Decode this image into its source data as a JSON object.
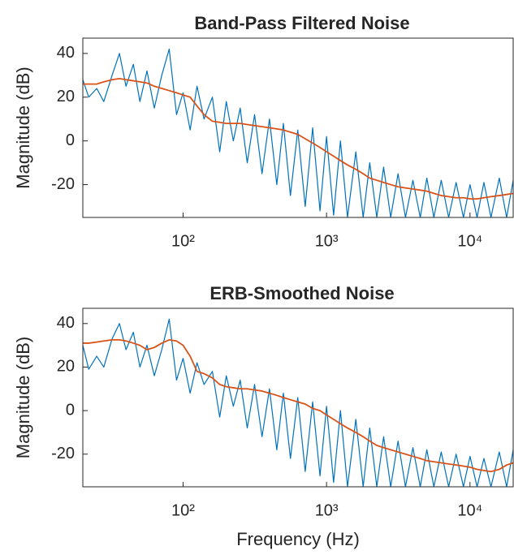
{
  "chart_data": [
    {
      "type": "line",
      "title": "Band-Pass Filtered Noise",
      "ylabel": "Magnitude (dB)",
      "log_x": true,
      "x": [
        20,
        22,
        25,
        28,
        32,
        36,
        40,
        45,
        50,
        56,
        63,
        71,
        80,
        90,
        100,
        112,
        125,
        140,
        160,
        180,
        200,
        224,
        250,
        280,
        315,
        355,
        400,
        450,
        500,
        560,
        630,
        710,
        800,
        900,
        1000,
        1120,
        1250,
        1400,
        1600,
        1800,
        2000,
        2240,
        2500,
        2800,
        3150,
        3550,
        4000,
        4500,
        5000,
        5600,
        6300,
        7100,
        8000,
        9000,
        10000,
        11200,
        12500,
        14000,
        16000,
        18000,
        20000
      ],
      "series": [
        {
          "color": "#0072bd",
          "values": [
            28,
            20,
            24,
            18,
            30,
            40,
            25,
            35,
            18,
            32,
            15,
            30,
            42,
            12,
            22,
            5,
            25,
            10,
            20,
            -5,
            18,
            0,
            15,
            -10,
            12,
            -15,
            10,
            -20,
            8,
            -25,
            5,
            -30,
            6,
            -32,
            2,
            -34,
            0,
            -35,
            -5,
            -35,
            -10,
            -35,
            -12,
            -35,
            -15,
            -35,
            -18,
            -35,
            -17,
            -35,
            -18,
            -35,
            -19,
            -35,
            -20,
            -35,
            -19,
            -35,
            -17,
            -35,
            -18
          ]
        },
        {
          "color": "#d95319",
          "values": [
            26,
            26,
            26,
            27,
            28,
            28.5,
            28,
            27.5,
            27,
            26.5,
            25,
            24,
            23,
            22,
            21,
            20,
            16,
            12,
            9,
            8.5,
            8,
            8,
            8,
            7.5,
            7,
            6.5,
            6,
            5.5,
            5,
            4,
            3,
            1,
            -1,
            -3,
            -5,
            -7,
            -9,
            -11,
            -13,
            -15,
            -17,
            -18,
            -19,
            -20,
            -21,
            -21.5,
            -22,
            -22.5,
            -23,
            -24,
            -25,
            -25.5,
            -26,
            -26,
            -26.5,
            -26.5,
            -26,
            -25.5,
            -25,
            -24.5,
            -24
          ]
        }
      ],
      "xlim": [
        20,
        20000
      ],
      "ylim": [
        -35,
        47
      ],
      "xticks": [
        {
          "value": 100,
          "label": "10²"
        },
        {
          "value": 1000,
          "label": "10³"
        },
        {
          "value": 10000,
          "label": "10⁴"
        }
      ],
      "yticks": [
        -20,
        0,
        20,
        40
      ]
    },
    {
      "type": "line",
      "title": "ERB-Smoothed Noise",
      "ylabel": "Magnitude (dB)",
      "xlabel": "Frequency (Hz)",
      "log_x": true,
      "x": [
        20,
        22,
        25,
        28,
        32,
        36,
        40,
        45,
        50,
        56,
        63,
        71,
        80,
        90,
        100,
        112,
        125,
        140,
        160,
        180,
        200,
        224,
        250,
        280,
        315,
        355,
        400,
        450,
        500,
        560,
        630,
        710,
        800,
        900,
        1000,
        1120,
        1250,
        1400,
        1600,
        1800,
        2000,
        2240,
        2500,
        2800,
        3150,
        3550,
        4000,
        4500,
        5000,
        5600,
        6300,
        7100,
        8000,
        9000,
        10000,
        11200,
        12500,
        14000,
        16000,
        18000,
        20000
      ],
      "series": [
        {
          "color": "#0072bd",
          "values": [
            30,
            19,
            25,
            20,
            33,
            40,
            28,
            36,
            20,
            30,
            16,
            28,
            42,
            14,
            24,
            8,
            22,
            12,
            18,
            -3,
            16,
            2,
            14,
            -8,
            12,
            -12,
            10,
            -18,
            8,
            -22,
            6,
            -28,
            4,
            -30,
            2,
            -33,
            0,
            -35,
            -4,
            -35,
            -8,
            -35,
            -12,
            -35,
            -14,
            -35,
            -17,
            -35,
            -18,
            -35,
            -19,
            -35,
            -20,
            -35,
            -21,
            -35,
            -22,
            -35,
            -19,
            -35,
            -18
          ]
        },
        {
          "color": "#d95319",
          "values": [
            31,
            31,
            31.5,
            32,
            32.5,
            32.5,
            32,
            31,
            30,
            28,
            29,
            31,
            32.5,
            32,
            30,
            25,
            18,
            17,
            15,
            12,
            11,
            10.5,
            10,
            10,
            9.5,
            9,
            8,
            7,
            6,
            5,
            4,
            3,
            1,
            0,
            -2,
            -4,
            -6,
            -8,
            -10,
            -12,
            -14,
            -16,
            -17,
            -18,
            -19,
            -20,
            -21,
            -22,
            -23,
            -23.5,
            -24,
            -24.5,
            -25,
            -25.5,
            -26,
            -27,
            -27.5,
            -28,
            -27,
            -25,
            -24
          ]
        }
      ],
      "xlim": [
        20,
        20000
      ],
      "ylim": [
        -35,
        47
      ],
      "xticks": [
        {
          "value": 100,
          "label": "10²"
        },
        {
          "value": 1000,
          "label": "10³"
        },
        {
          "value": 10000,
          "label": "10⁴"
        }
      ],
      "yticks": [
        -20,
        0,
        20,
        40
      ]
    }
  ]
}
